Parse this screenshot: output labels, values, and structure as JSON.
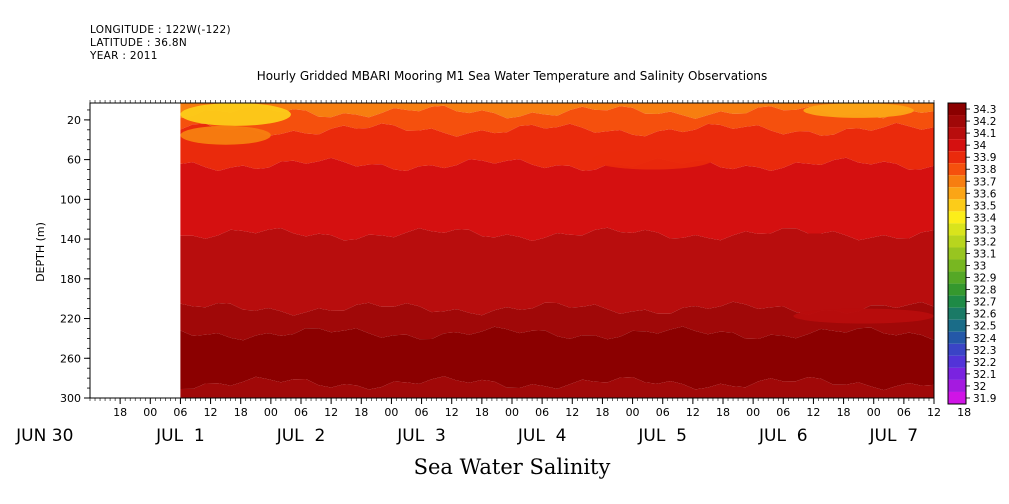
{
  "header": {
    "longitude": "LONGITUDE : 122W(-122)",
    "latitude": "LATITUDE : 36.8N",
    "year": "YEAR : 2011"
  },
  "chart_data": {
    "type": "heatmap",
    "title": "Hourly Gridded MBARI Mooring M1 Sea Water Temperature and Salinity Observations",
    "xlabel": "Sea Water Salinity",
    "ylabel": "DEPTH (m)",
    "y_ticks": [
      20,
      60,
      100,
      140,
      180,
      220,
      260,
      300
    ],
    "ylim": [
      300,
      3
    ],
    "x_hour_ticks": [
      "18",
      "00",
      "06",
      "12",
      "18",
      "00",
      "06",
      "12",
      "18",
      "00",
      "06",
      "12",
      "18",
      "00",
      "06",
      "12",
      "18",
      "00",
      "06",
      "12",
      "18",
      "00",
      "06",
      "12",
      "18",
      "00",
      "06",
      "12",
      "18"
    ],
    "x_hour_start": 18,
    "x_hour_step": 6,
    "x_data_start_hour": 30,
    "x_day_labels": [
      {
        "label": "JUN 30",
        "hour": 3
      },
      {
        "label": "JUL  1",
        "hour": 30
      },
      {
        "label": "JUL  2",
        "hour": 54
      },
      {
        "label": "JUL  3",
        "hour": 78
      },
      {
        "label": "JUL  4",
        "hour": 102
      },
      {
        "label": "JUL  5",
        "hour": 126
      },
      {
        "label": "JUL  6",
        "hour": 150
      },
      {
        "label": "JUL  7",
        "hour": 172
      }
    ],
    "xlim": [
      12,
      180
    ],
    "colorbar": {
      "levels": [
        "34.3",
        "34.2",
        "34.1",
        "34",
        "33.9",
        "33.8",
        "33.7",
        "33.6",
        "33.5",
        "33.4",
        "33.3",
        "33.2",
        "33.1",
        "33",
        "32.9",
        "32.8",
        "32.7",
        "32.6",
        "32.5",
        "32.4",
        "32.3",
        "32.2",
        "32.1",
        "32",
        "31.9"
      ],
      "colors": [
        "#8b0000",
        "#a00808",
        "#b80d0d",
        "#d51010",
        "#ea2a0c",
        "#f5500d",
        "#f77e10",
        "#fba516",
        "#fccc19",
        "#fcee1a",
        "#d9e41c",
        "#b8d51e",
        "#98c520",
        "#78b721",
        "#55a826",
        "#35982e",
        "#1e8a46",
        "#1a7a66",
        "#1a6c88",
        "#2458a8",
        "#3a44c6",
        "#5233d8",
        "#7a23e0",
        "#a51ae0",
        "#d014e6"
      ]
    },
    "depth_bands": [
      {
        "from": 3,
        "to": 12,
        "value": 33.7
      },
      {
        "from": 12,
        "to": 30,
        "value": 33.8
      },
      {
        "from": 30,
        "to": 65,
        "value": 33.9
      },
      {
        "from": 65,
        "to": 135,
        "value": 34
      },
      {
        "from": 135,
        "to": 210,
        "value": 34.1
      },
      {
        "from": 210,
        "to": 235,
        "value": 34.2
      },
      {
        "from": 235,
        "to": 285,
        "value": 34.3
      },
      {
        "from": 285,
        "to": 300,
        "value": 34.2
      }
    ],
    "features": [
      {
        "hour_from": 30,
        "hour_to": 52,
        "depth_from": 3,
        "depth_to": 26,
        "value": 33.5
      },
      {
        "hour_from": 30,
        "hour_to": 48,
        "depth_from": 26,
        "depth_to": 45,
        "value": 33.7
      },
      {
        "hour_from": 154,
        "hour_to": 176,
        "depth_from": 3,
        "depth_to": 18,
        "value": 33.6
      },
      {
        "hour_from": 112,
        "hour_to": 136,
        "depth_from": 50,
        "depth_to": 70,
        "value": 33.9
      },
      {
        "hour_from": 152,
        "hour_to": 180,
        "depth_from": 210,
        "depth_to": 225,
        "value": 34.1
      }
    ]
  }
}
